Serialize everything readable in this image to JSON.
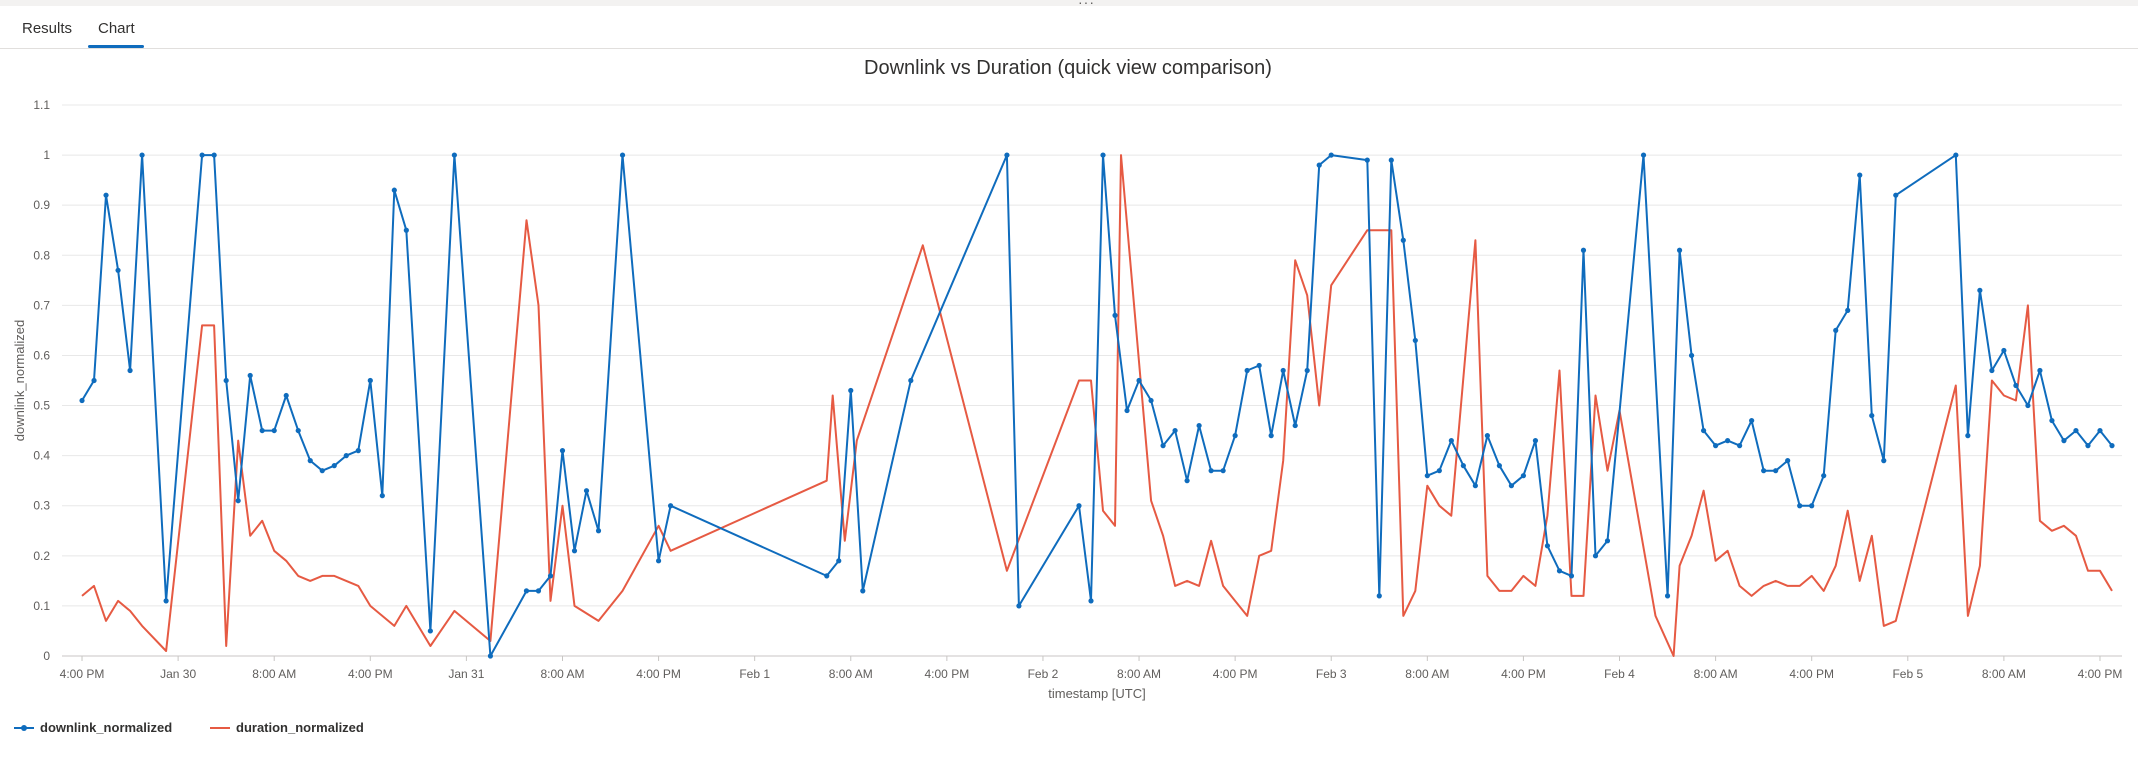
{
  "tabs": [
    {
      "label": "Results",
      "active": false
    },
    {
      "label": "Chart",
      "active": true
    }
  ],
  "chart_data": {
    "type": "line",
    "title": "Downlink vs Duration (quick view comparison)",
    "xlabel": "timestamp [UTC]",
    "ylabel": "downlink_normalized",
    "ylim": [
      0,
      1.1
    ],
    "yticks": [
      "0",
      "0.1",
      "0.2",
      "0.3",
      "0.4",
      "0.5",
      "0.6",
      "0.7",
      "0.8",
      "0.9",
      "1",
      "1.1"
    ],
    "xlim": [
      "Jan 29 14:20",
      "Feb 5 17:50"
    ],
    "xticks": [
      {
        "t": "Jan 29 16:00",
        "label": "4:00 PM"
      },
      {
        "t": "Jan 30 00:00",
        "label": "Jan 30"
      },
      {
        "t": "Jan 30 08:00",
        "label": "8:00 AM"
      },
      {
        "t": "Jan 30 16:00",
        "label": "4:00 PM"
      },
      {
        "t": "Jan 31 00:00",
        "label": "Jan 31"
      },
      {
        "t": "Jan 31 08:00",
        "label": "8:00 AM"
      },
      {
        "t": "Jan 31 16:00",
        "label": "4:00 PM"
      },
      {
        "t": "Feb 1 00:00",
        "label": "Feb 1"
      },
      {
        "t": "Feb 1 08:00",
        "label": "8:00 AM"
      },
      {
        "t": "Feb 1 16:00",
        "label": "4:00 PM"
      },
      {
        "t": "Feb 2 00:00",
        "label": "Feb 2"
      },
      {
        "t": "Feb 2 08:00",
        "label": "8:00 AM"
      },
      {
        "t": "Feb 2 16:00",
        "label": "4:00 PM"
      },
      {
        "t": "Feb 3 00:00",
        "label": "Feb 3"
      },
      {
        "t": "Feb 3 08:00",
        "label": "8:00 AM"
      },
      {
        "t": "Feb 3 16:00",
        "label": "4:00 PM"
      },
      {
        "t": "Feb 4 00:00",
        "label": "Feb 4"
      },
      {
        "t": "Feb 4 08:00",
        "label": "8:00 AM"
      },
      {
        "t": "Feb 4 16:00",
        "label": "4:00 PM"
      },
      {
        "t": "Feb 5 00:00",
        "label": "Feb 5"
      },
      {
        "t": "Feb 5 08:00",
        "label": "8:00 AM"
      },
      {
        "t": "Feb 5 16:00",
        "label": "4:00 PM"
      }
    ],
    "grid": true,
    "legend_position": "bottom-left",
    "series": [
      {
        "name": "downlink_normalized",
        "color": "#0f6cbd",
        "markers": true,
        "points": [
          [
            "Jan 29 16:00",
            0.51
          ],
          [
            "Jan 29 17:00",
            0.55
          ],
          [
            "Jan 29 18:00",
            0.92
          ],
          [
            "Jan 29 19:00",
            0.77
          ],
          [
            "Jan 29 20:00",
            0.57
          ],
          [
            "Jan 29 21:00",
            1.0
          ],
          [
            "Jan 29 23:00",
            0.11
          ],
          [
            "Jan 30 02:00",
            1.0
          ],
          [
            "Jan 30 03:00",
            1.0
          ],
          [
            "Jan 30 04:00",
            0.55
          ],
          [
            "Jan 30 05:00",
            0.31
          ],
          [
            "Jan 30 06:00",
            0.56
          ],
          [
            "Jan 30 07:00",
            0.45
          ],
          [
            "Jan 30 08:00",
            0.45
          ],
          [
            "Jan 30 09:00",
            0.52
          ],
          [
            "Jan 30 10:00",
            0.45
          ],
          [
            "Jan 30 11:00",
            0.39
          ],
          [
            "Jan 30 12:00",
            0.37
          ],
          [
            "Jan 30 13:00",
            0.38
          ],
          [
            "Jan 30 14:00",
            0.4
          ],
          [
            "Jan 30 15:00",
            0.41
          ],
          [
            "Jan 30 16:00",
            0.55
          ],
          [
            "Jan 30 17:00",
            0.32
          ],
          [
            "Jan 30 18:00",
            0.93
          ],
          [
            "Jan 30 19:00",
            0.85
          ],
          [
            "Jan 30 21:00",
            0.05
          ],
          [
            "Jan 30 23:00",
            1.0
          ],
          [
            "Jan 31 02:00",
            0.0
          ],
          [
            "Jan 31 05:00",
            0.13
          ],
          [
            "Jan 31 06:00",
            0.13
          ],
          [
            "Jan 31 07:00",
            0.16
          ],
          [
            "Jan 31 08:00",
            0.41
          ],
          [
            "Jan 31 09:00",
            0.21
          ],
          [
            "Jan 31 10:00",
            0.33
          ],
          [
            "Jan 31 11:00",
            0.25
          ],
          [
            "Jan 31 13:00",
            1.0
          ],
          [
            "Jan 31 16:00",
            0.19
          ],
          [
            "Jan 31 17:00",
            0.3
          ],
          [
            "Feb 1 06:00",
            0.16
          ],
          [
            "Feb 1 07:00",
            0.19
          ],
          [
            "Feb 1 08:00",
            0.53
          ],
          [
            "Feb 1 09:00",
            0.13
          ],
          [
            "Feb 1 13:00",
            0.55
          ],
          [
            "Feb 1 21:00",
            1.0
          ],
          [
            "Feb 1 22:00",
            0.1
          ],
          [
            "Feb 2 03:00",
            0.3
          ],
          [
            "Feb 2 04:00",
            0.11
          ],
          [
            "Feb 2 05:00",
            1.0
          ],
          [
            "Feb 2 06:00",
            0.68
          ],
          [
            "Feb 2 07:00",
            0.49
          ],
          [
            "Feb 2 08:00",
            0.55
          ],
          [
            "Feb 2 09:00",
            0.51
          ],
          [
            "Feb 2 10:00",
            0.42
          ],
          [
            "Feb 2 11:00",
            0.45
          ],
          [
            "Feb 2 12:00",
            0.35
          ],
          [
            "Feb 2 13:00",
            0.46
          ],
          [
            "Feb 2 14:00",
            0.37
          ],
          [
            "Feb 2 15:00",
            0.37
          ],
          [
            "Feb 2 16:00",
            0.44
          ],
          [
            "Feb 2 17:00",
            0.57
          ],
          [
            "Feb 2 18:00",
            0.58
          ],
          [
            "Feb 2 19:00",
            0.44
          ],
          [
            "Feb 2 20:00",
            0.57
          ],
          [
            "Feb 2 21:00",
            0.46
          ],
          [
            "Feb 2 22:00",
            0.57
          ],
          [
            "Feb 2 23:00",
            0.98
          ],
          [
            "Feb 3 00:00",
            1.0
          ],
          [
            "Feb 3 03:00",
            0.99
          ],
          [
            "Feb 3 04:00",
            0.12
          ],
          [
            "Feb 3 05:00",
            0.99
          ],
          [
            "Feb 3 06:00",
            0.83
          ],
          [
            "Feb 3 07:00",
            0.63
          ],
          [
            "Feb 3 08:00",
            0.36
          ],
          [
            "Feb 3 09:00",
            0.37
          ],
          [
            "Feb 3 10:00",
            0.43
          ],
          [
            "Feb 3 11:00",
            0.38
          ],
          [
            "Feb 3 12:00",
            0.34
          ],
          [
            "Feb 3 13:00",
            0.44
          ],
          [
            "Feb 3 14:00",
            0.38
          ],
          [
            "Feb 3 15:00",
            0.34
          ],
          [
            "Feb 3 16:00",
            0.36
          ],
          [
            "Feb 3 17:00",
            0.43
          ],
          [
            "Feb 3 18:00",
            0.22
          ],
          [
            "Feb 3 19:00",
            0.17
          ],
          [
            "Feb 3 20:00",
            0.16
          ],
          [
            "Feb 3 21:00",
            0.81
          ],
          [
            "Feb 3 22:00",
            0.2
          ],
          [
            "Feb 3 23:00",
            0.23
          ],
          [
            "Feb 4 02:00",
            1.0
          ],
          [
            "Feb 4 04:00",
            0.12
          ],
          [
            "Feb 4 05:00",
            0.81
          ],
          [
            "Feb 4 06:00",
            0.6
          ],
          [
            "Feb 4 07:00",
            0.45
          ],
          [
            "Feb 4 08:00",
            0.42
          ],
          [
            "Feb 4 09:00",
            0.43
          ],
          [
            "Feb 4 10:00",
            0.42
          ],
          [
            "Feb 4 11:00",
            0.47
          ],
          [
            "Feb 4 12:00",
            0.37
          ],
          [
            "Feb 4 13:00",
            0.37
          ],
          [
            "Feb 4 14:00",
            0.39
          ],
          [
            "Feb 4 15:00",
            0.3
          ],
          [
            "Feb 4 16:00",
            0.3
          ],
          [
            "Feb 4 17:00",
            0.36
          ],
          [
            "Feb 4 18:00",
            0.65
          ],
          [
            "Feb 4 19:00",
            0.69
          ],
          [
            "Feb 4 20:00",
            0.96
          ],
          [
            "Feb 4 21:00",
            0.48
          ],
          [
            "Feb 4 22:00",
            0.39
          ],
          [
            "Feb 4 23:00",
            0.92
          ],
          [
            "Feb 5 04:00",
            1.0
          ],
          [
            "Feb 5 05:00",
            0.44
          ],
          [
            "Feb 5 06:00",
            0.73
          ],
          [
            "Feb 5 07:00",
            0.57
          ],
          [
            "Feb 5 08:00",
            0.61
          ],
          [
            "Feb 5 09:00",
            0.54
          ],
          [
            "Feb 5 10:00",
            0.5
          ],
          [
            "Feb 5 11:00",
            0.57
          ],
          [
            "Feb 5 12:00",
            0.47
          ],
          [
            "Feb 5 13:00",
            0.43
          ],
          [
            "Feb 5 14:00",
            0.45
          ],
          [
            "Feb 5 15:00",
            0.42
          ],
          [
            "Feb 5 16:00",
            0.45
          ],
          [
            "Feb 5 17:00",
            0.42
          ]
        ]
      },
      {
        "name": "duration_normalized",
        "color": "#e65a43",
        "markers": false,
        "points": [
          [
            "Jan 29 16:00",
            0.12
          ],
          [
            "Jan 29 17:00",
            0.14
          ],
          [
            "Jan 29 18:00",
            0.07
          ],
          [
            "Jan 29 19:00",
            0.11
          ],
          [
            "Jan 29 20:00",
            0.09
          ],
          [
            "Jan 29 21:00",
            0.06
          ],
          [
            "Jan 29 23:00",
            0.01
          ],
          [
            "Jan 30 02:00",
            0.66
          ],
          [
            "Jan 30 03:00",
            0.66
          ],
          [
            "Jan 30 04:00",
            0.02
          ],
          [
            "Jan 30 05:00",
            0.43
          ],
          [
            "Jan 30 06:00",
            0.24
          ],
          [
            "Jan 30 07:00",
            0.27
          ],
          [
            "Jan 30 08:00",
            0.21
          ],
          [
            "Jan 30 09:00",
            0.19
          ],
          [
            "Jan 30 10:00",
            0.16
          ],
          [
            "Jan 30 11:00",
            0.15
          ],
          [
            "Jan 30 12:00",
            0.16
          ],
          [
            "Jan 30 13:00",
            0.16
          ],
          [
            "Jan 30 14:00",
            0.15
          ],
          [
            "Jan 30 15:00",
            0.14
          ],
          [
            "Jan 30 16:00",
            0.1
          ],
          [
            "Jan 30 17:00",
            0.08
          ],
          [
            "Jan 30 18:00",
            0.06
          ],
          [
            "Jan 30 19:00",
            0.1
          ],
          [
            "Jan 30 21:00",
            0.02
          ],
          [
            "Jan 30 23:00",
            0.09
          ],
          [
            "Jan 31 02:00",
            0.03
          ],
          [
            "Jan 31 05:00",
            0.87
          ],
          [
            "Jan 31 06:00",
            0.7
          ],
          [
            "Jan 31 07:00",
            0.11
          ],
          [
            "Jan 31 08:00",
            0.3
          ],
          [
            "Jan 31 09:00",
            0.1
          ],
          [
            "Jan 31 11:00",
            0.07
          ],
          [
            "Jan 31 13:00",
            0.13
          ],
          [
            "Jan 31 16:00",
            0.26
          ],
          [
            "Jan 31 17:00",
            0.21
          ],
          [
            "Feb 1 06:00",
            0.35
          ],
          [
            "Feb 1 06:30",
            0.52
          ],
          [
            "Feb 1 07:30",
            0.23
          ],
          [
            "Feb 1 08:30",
            0.43
          ],
          [
            "Feb 1 14:00",
            0.82
          ],
          [
            "Feb 1 21:00",
            0.17
          ],
          [
            "Feb 2 03:00",
            0.55
          ],
          [
            "Feb 2 04:00",
            0.55
          ],
          [
            "Feb 2 05:00",
            0.29
          ],
          [
            "Feb 2 06:00",
            0.26
          ],
          [
            "Feb 2 06:30",
            1.0
          ],
          [
            "Feb 2 09:00",
            0.31
          ],
          [
            "Feb 2 10:00",
            0.24
          ],
          [
            "Feb 2 11:00",
            0.14
          ],
          [
            "Feb 2 12:00",
            0.15
          ],
          [
            "Feb 2 13:00",
            0.14
          ],
          [
            "Feb 2 14:00",
            0.23
          ],
          [
            "Feb 2 15:00",
            0.14
          ],
          [
            "Feb 2 16:00",
            0.11
          ],
          [
            "Feb 2 17:00",
            0.08
          ],
          [
            "Feb 2 18:00",
            0.2
          ],
          [
            "Feb 2 19:00",
            0.21
          ],
          [
            "Feb 2 20:00",
            0.39
          ],
          [
            "Feb 2 21:00",
            0.79
          ],
          [
            "Feb 2 22:00",
            0.72
          ],
          [
            "Feb 2 23:00",
            0.5
          ],
          [
            "Feb 3 00:00",
            0.74
          ],
          [
            "Feb 3 03:00",
            0.85
          ],
          [
            "Feb 3 05:00",
            0.85
          ],
          [
            "Feb 3 06:00",
            0.08
          ],
          [
            "Feb 3 07:00",
            0.13
          ],
          [
            "Feb 3 08:00",
            0.34
          ],
          [
            "Feb 3 09:00",
            0.3
          ],
          [
            "Feb 3 10:00",
            0.28
          ],
          [
            "Feb 3 12:00",
            0.83
          ],
          [
            "Feb 3 13:00",
            0.16
          ],
          [
            "Feb 3 14:00",
            0.13
          ],
          [
            "Feb 3 15:00",
            0.13
          ],
          [
            "Feb 3 16:00",
            0.16
          ],
          [
            "Feb 3 17:00",
            0.14
          ],
          [
            "Feb 3 18:00",
            0.28
          ],
          [
            "Feb 3 19:00",
            0.57
          ],
          [
            "Feb 3 20:00",
            0.12
          ],
          [
            "Feb 3 21:00",
            0.12
          ],
          [
            "Feb 3 22:00",
            0.52
          ],
          [
            "Feb 3 23:00",
            0.37
          ],
          [
            "Feb 4 00:00",
            0.49
          ],
          [
            "Feb 4 03:00",
            0.08
          ],
          [
            "Feb 4 04:30",
            0.0
          ],
          [
            "Feb 4 05:00",
            0.18
          ],
          [
            "Feb 4 06:00",
            0.24
          ],
          [
            "Feb 4 07:00",
            0.33
          ],
          [
            "Feb 4 08:00",
            0.19
          ],
          [
            "Feb 4 09:00",
            0.21
          ],
          [
            "Feb 4 10:00",
            0.14
          ],
          [
            "Feb 4 11:00",
            0.12
          ],
          [
            "Feb 4 12:00",
            0.14
          ],
          [
            "Feb 4 13:00",
            0.15
          ],
          [
            "Feb 4 14:00",
            0.14
          ],
          [
            "Feb 4 15:00",
            0.14
          ],
          [
            "Feb 4 16:00",
            0.16
          ],
          [
            "Feb 4 17:00",
            0.13
          ],
          [
            "Feb 4 18:00",
            0.18
          ],
          [
            "Feb 4 19:00",
            0.29
          ],
          [
            "Feb 4 20:00",
            0.15
          ],
          [
            "Feb 4 21:00",
            0.24
          ],
          [
            "Feb 4 22:00",
            0.06
          ],
          [
            "Feb 4 23:00",
            0.07
          ],
          [
            "Feb 5 04:00",
            0.54
          ],
          [
            "Feb 5 05:00",
            0.08
          ],
          [
            "Feb 5 06:00",
            0.18
          ],
          [
            "Feb 5 07:00",
            0.55
          ],
          [
            "Feb 5 08:00",
            0.52
          ],
          [
            "Feb 5 09:00",
            0.51
          ],
          [
            "Feb 5 10:00",
            0.7
          ],
          [
            "Feb 5 11:00",
            0.27
          ],
          [
            "Feb 5 12:00",
            0.25
          ],
          [
            "Feb 5 13:00",
            0.26
          ],
          [
            "Feb 5 14:00",
            0.24
          ],
          [
            "Feb 5 15:00",
            0.17
          ],
          [
            "Feb 5 16:00",
            0.17
          ],
          [
            "Feb 5 17:00",
            0.13
          ]
        ]
      }
    ]
  }
}
